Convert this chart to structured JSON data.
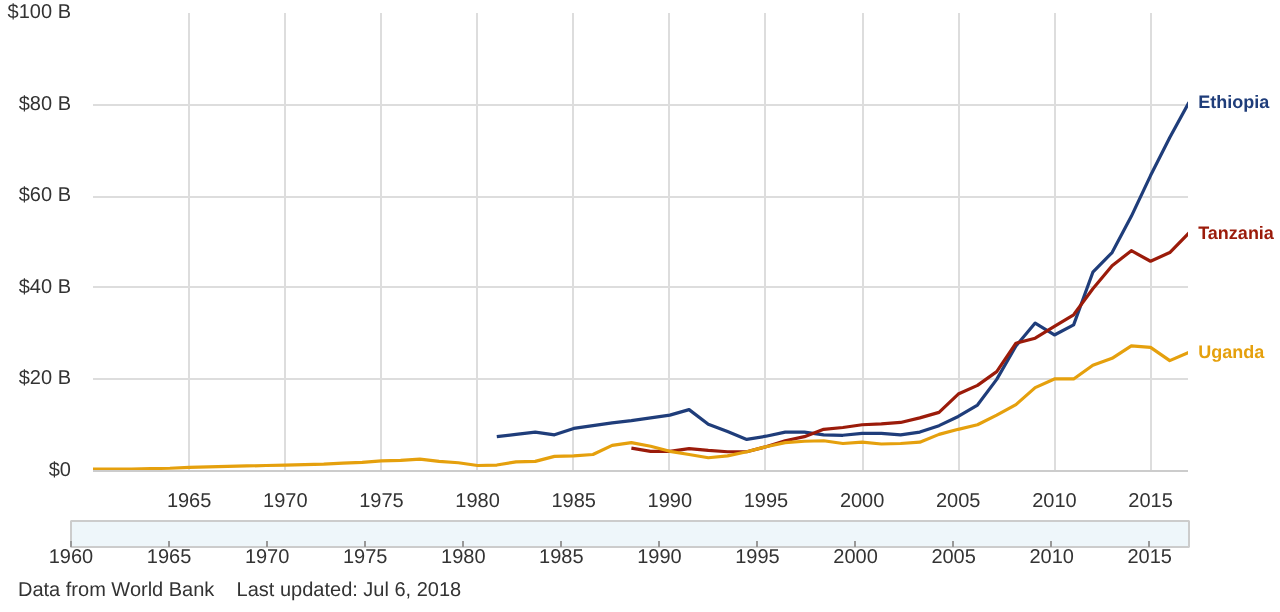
{
  "chart_data": {
    "type": "line",
    "xlim": [
      1960,
      2017
    ],
    "ylim": [
      0,
      100
    ],
    "xticks": [
      1965,
      1970,
      1975,
      1980,
      1985,
      1990,
      1995,
      2000,
      2005,
      2010,
      2015
    ],
    "yticks": [
      {
        "value": 0,
        "label": "$0"
      },
      {
        "value": 20,
        "label": "$20 B"
      },
      {
        "value": 40,
        "label": "$40 B"
      },
      {
        "value": 60,
        "label": "$60 B"
      },
      {
        "value": 80,
        "label": "$80 B"
      },
      {
        "value": 100,
        "label": "$100 B"
      }
    ],
    "grid": true,
    "marker": "none",
    "line_style": "solid",
    "series": [
      {
        "name": "Ethiopia",
        "color": "#1f3d7a",
        "x": [
          1981,
          1982,
          1983,
          1984,
          1985,
          1986,
          1987,
          1988,
          1989,
          1990,
          1991,
          1992,
          1993,
          1994,
          1995,
          1996,
          1997,
          1998,
          1999,
          2000,
          2001,
          2002,
          2003,
          2004,
          2005,
          2006,
          2007,
          2008,
          2009,
          2010,
          2011,
          2012,
          2013,
          2014,
          2015,
          2016,
          2017
        ],
        "values": [
          7.5,
          8.0,
          8.5,
          7.9,
          9.3,
          9.9,
          10.5,
          11.0,
          11.6,
          12.2,
          13.4,
          10.2,
          8.6,
          6.9,
          7.6,
          8.5,
          8.5,
          7.9,
          7.8,
          8.2,
          8.2,
          7.9,
          8.5,
          9.9,
          11.9,
          14.4,
          20.0,
          27.3,
          32.3,
          29.7,
          31.9,
          43.4,
          47.7,
          55.6,
          64.5,
          72.8,
          80.5
        ]
      },
      {
        "name": "Tanzania",
        "color": "#9b1b0a",
        "x": [
          1988,
          1989,
          1990,
          1991,
          1992,
          1993,
          1994,
          1995,
          1996,
          1997,
          1998,
          1999,
          2000,
          2001,
          2002,
          2003,
          2004,
          2005,
          2006,
          2007,
          2008,
          2009,
          2010,
          2011,
          2012,
          2013,
          2014,
          2015,
          2016,
          2017
        ],
        "values": [
          5.0,
          4.3,
          4.3,
          4.9,
          4.5,
          4.2,
          4.2,
          5.3,
          6.6,
          7.5,
          9.1,
          9.5,
          10.1,
          10.3,
          10.6,
          11.6,
          12.8,
          16.8,
          18.7,
          21.7,
          27.9,
          29.0,
          31.6,
          34.1,
          39.8,
          44.8,
          48.1,
          45.8,
          47.7,
          52.0
        ]
      },
      {
        "name": "Uganda",
        "color": "#e5a00d",
        "x": [
          1960,
          1961,
          1962,
          1963,
          1964,
          1965,
          1966,
          1967,
          1968,
          1969,
          1970,
          1971,
          1972,
          1973,
          1974,
          1975,
          1976,
          1977,
          1978,
          1979,
          1980,
          1981,
          1982,
          1983,
          1984,
          1985,
          1986,
          1987,
          1988,
          1989,
          1990,
          1991,
          1992,
          1993,
          1994,
          1995,
          1996,
          1997,
          1998,
          1999,
          2000,
          2001,
          2002,
          2003,
          2004,
          2005,
          2006,
          2007,
          2008,
          2009,
          2010,
          2011,
          2012,
          2013,
          2014,
          2015,
          2016,
          2017
        ],
        "values": [
          0.4,
          0.4,
          0.4,
          0.5,
          0.6,
          0.8,
          0.9,
          1.0,
          1.1,
          1.2,
          1.3,
          1.4,
          1.5,
          1.7,
          1.9,
          2.2,
          2.3,
          2.6,
          2.1,
          1.8,
          1.2,
          1.3,
          2.0,
          2.1,
          3.2,
          3.3,
          3.6,
          5.6,
          6.2,
          5.4,
          4.3,
          3.6,
          2.9,
          3.3,
          4.2,
          5.3,
          6.2,
          6.5,
          6.6,
          6.0,
          6.3,
          5.9,
          6.0,
          6.3,
          8.0,
          9.1,
          10.1,
          12.2,
          14.5,
          18.2,
          20.1,
          20.1,
          23.1,
          24.6,
          27.3,
          27.0,
          24.1,
          25.9
        ]
      }
    ],
    "x2lim": [
      1960,
      2017
    ],
    "x2ticks": [
      1960,
      1965,
      1970,
      1975,
      1980,
      1985,
      1990,
      1995,
      2000,
      2005,
      2010,
      2015
    ],
    "annotations": [
      "Data from World Bank",
      "Last updated: Jul 6, 2018"
    ]
  }
}
